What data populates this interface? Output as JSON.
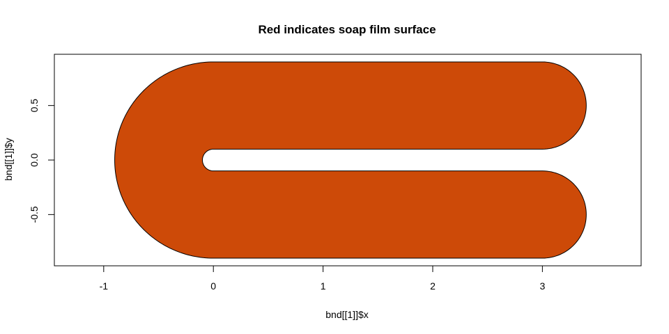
{
  "chart_data": {
    "type": "area",
    "title": "Red indicates soap film surface",
    "xlabel": "bnd[[1]]$x",
    "ylabel": "bnd[[1]]$y",
    "xlim": [
      -1.45,
      3.9
    ],
    "ylim": [
      -0.97,
      0.97
    ],
    "x_ticks": [
      -1,
      0,
      1,
      2,
      3
    ],
    "y_ticks": [
      -0.5,
      0.0,
      0.5
    ],
    "y_tick_labels": [
      "-0.5",
      "0.0",
      "0.5"
    ],
    "grid": false,
    "fill_color": "#CD4A08",
    "boundary_color": "#000000",
    "shape": {
      "name": "horseshoe",
      "arm_length": 3,
      "outer_radius": 0.9,
      "inner_radius": 0.1,
      "arm_centers_y": [
        0.5,
        -0.5
      ]
    }
  }
}
